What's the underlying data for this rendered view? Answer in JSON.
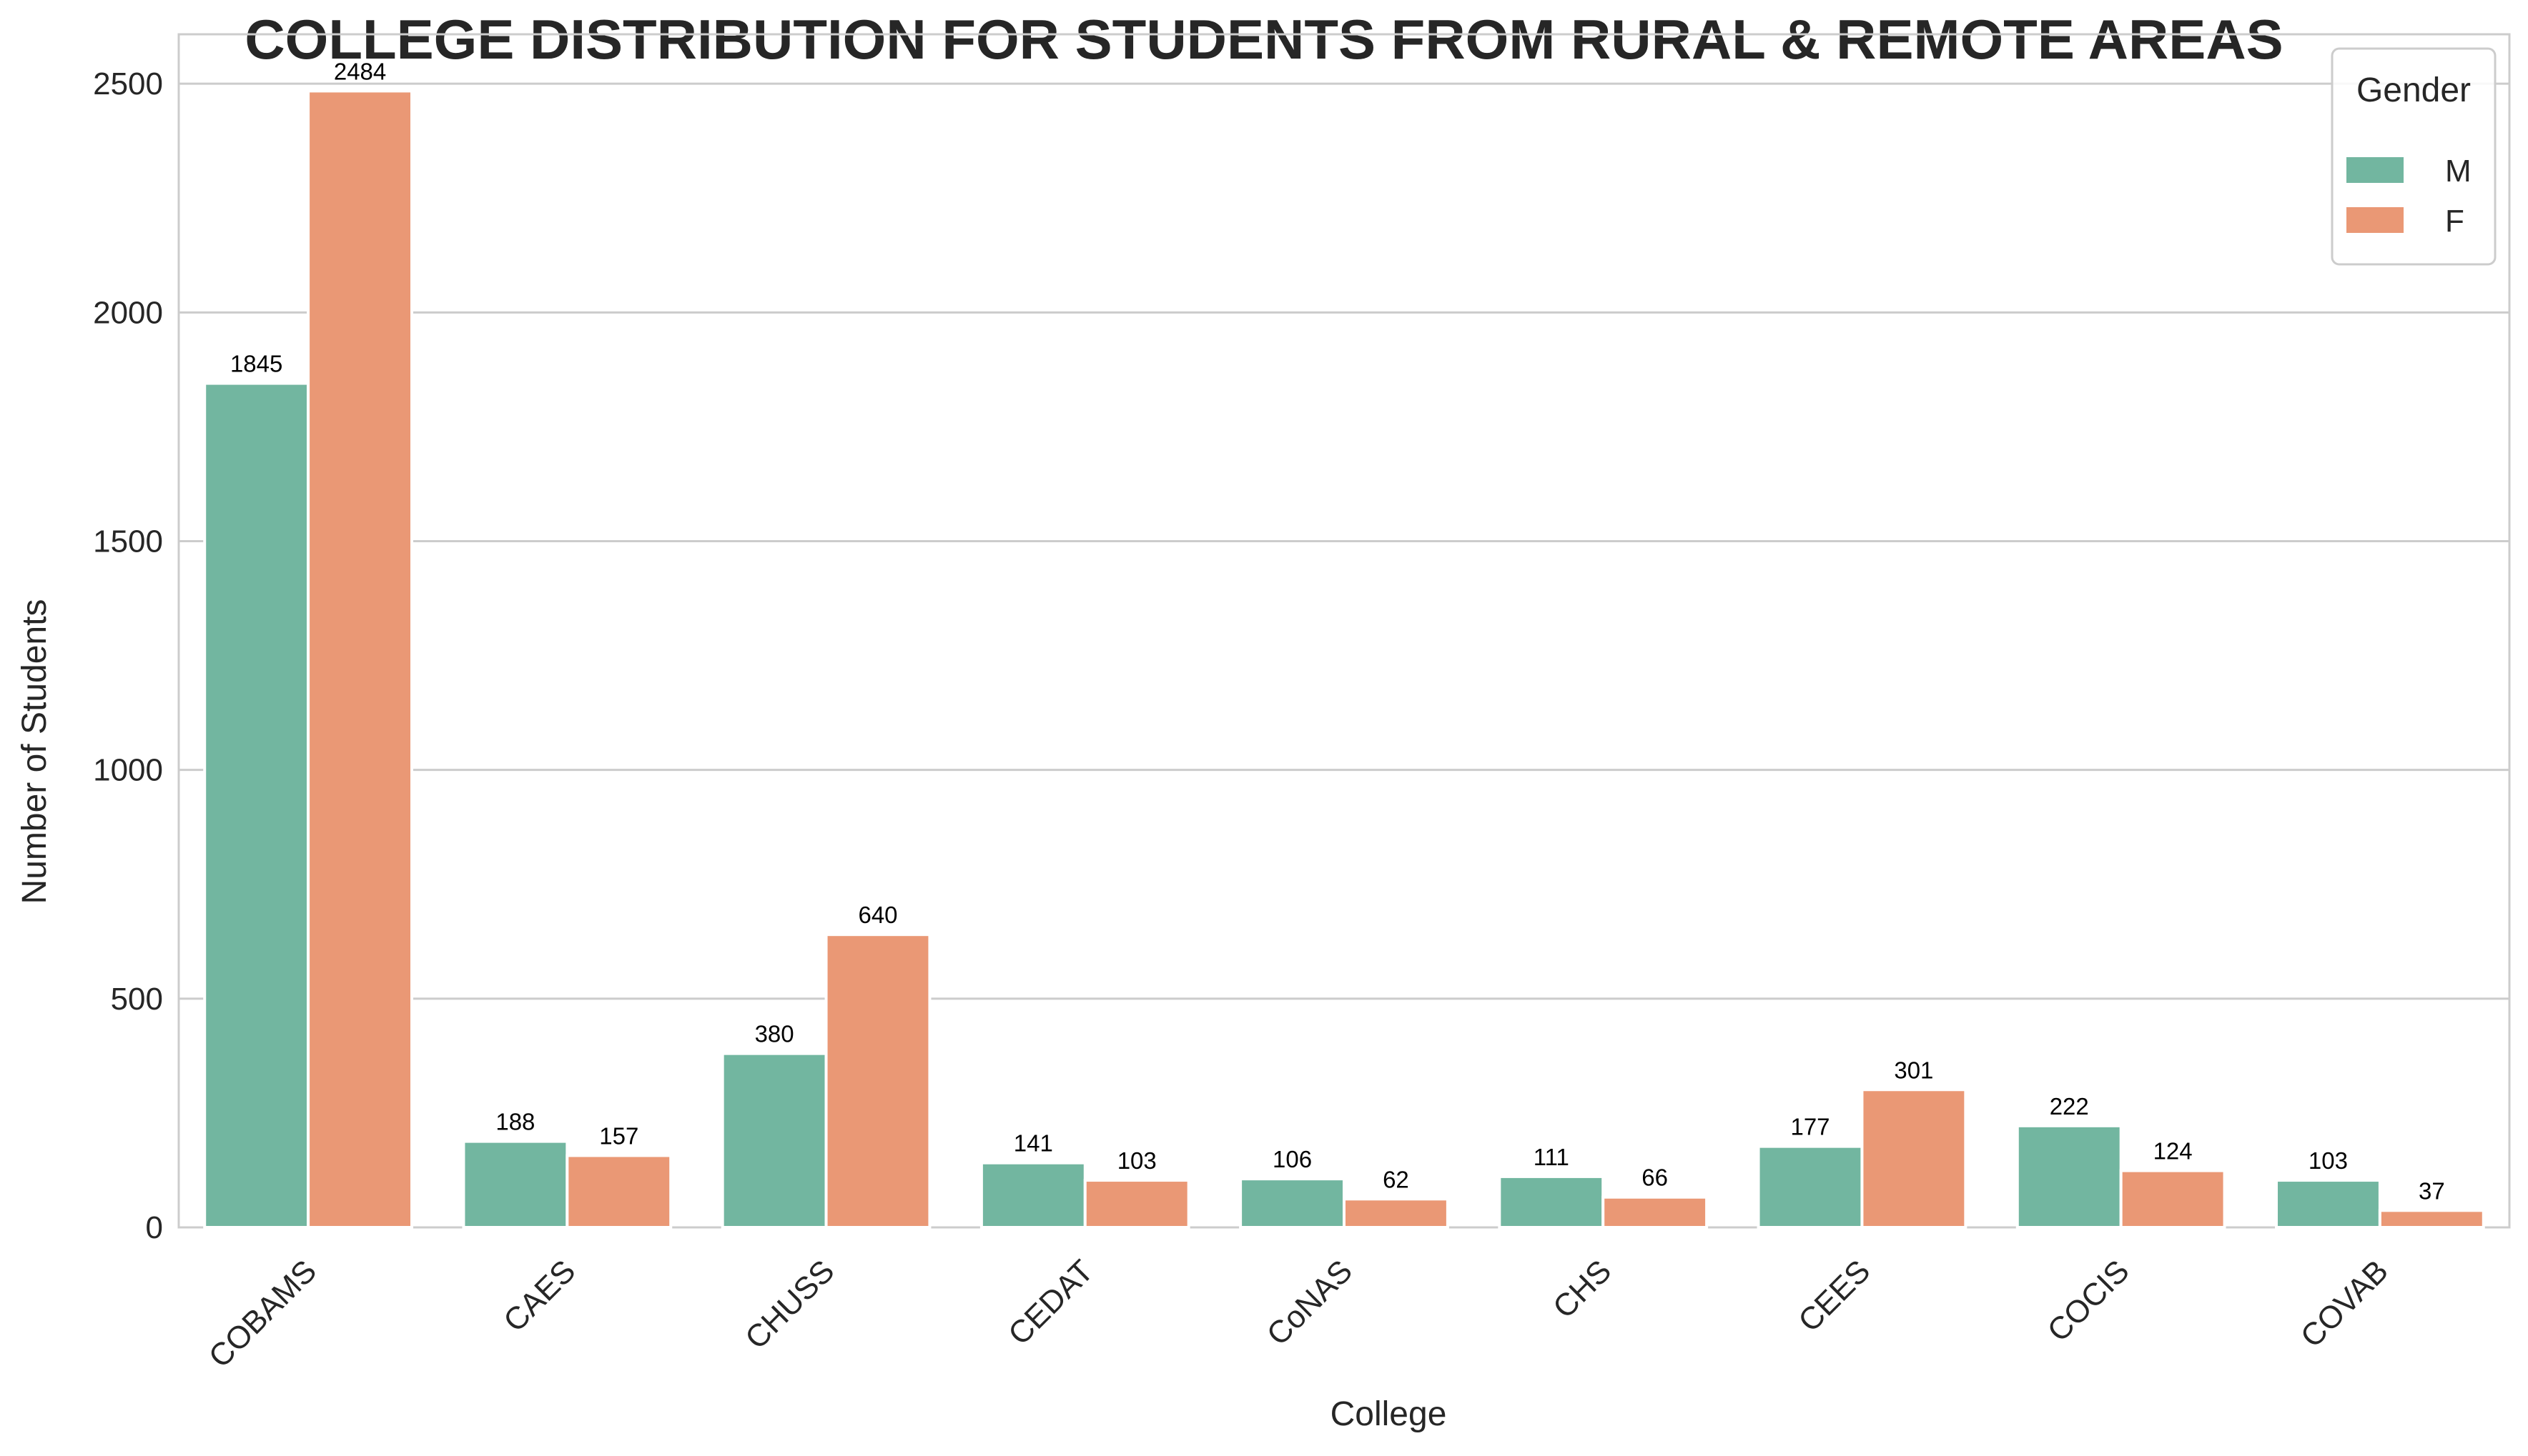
{
  "chart_data": {
    "type": "bar",
    "title": "COLLEGE DISTRIBUTION FOR STUDENTS FROM RURAL & REMOTE AREAS",
    "xlabel": "College",
    "ylabel": "Number of Students",
    "categories": [
      "COBAMS",
      "CAES",
      "CHUSS",
      "CEDAT",
      "CoNAS",
      "CHS",
      "CEES",
      "COCIS",
      "COVAB"
    ],
    "series": [
      {
        "name": "M",
        "color": "#72b6a0",
        "values": [
          1845,
          188,
          380,
          141,
          106,
          111,
          177,
          222,
          103
        ]
      },
      {
        "name": "F",
        "color": "#ea9875",
        "values": [
          2484,
          157,
          640,
          103,
          62,
          66,
          301,
          124,
          37
        ]
      }
    ],
    "ylim": [
      0,
      2608
    ],
    "yticks": [
      0,
      500,
      1000,
      1500,
      2000,
      2500
    ],
    "grid": true,
    "legend": {
      "title": "Gender",
      "placement": "top-right"
    }
  }
}
